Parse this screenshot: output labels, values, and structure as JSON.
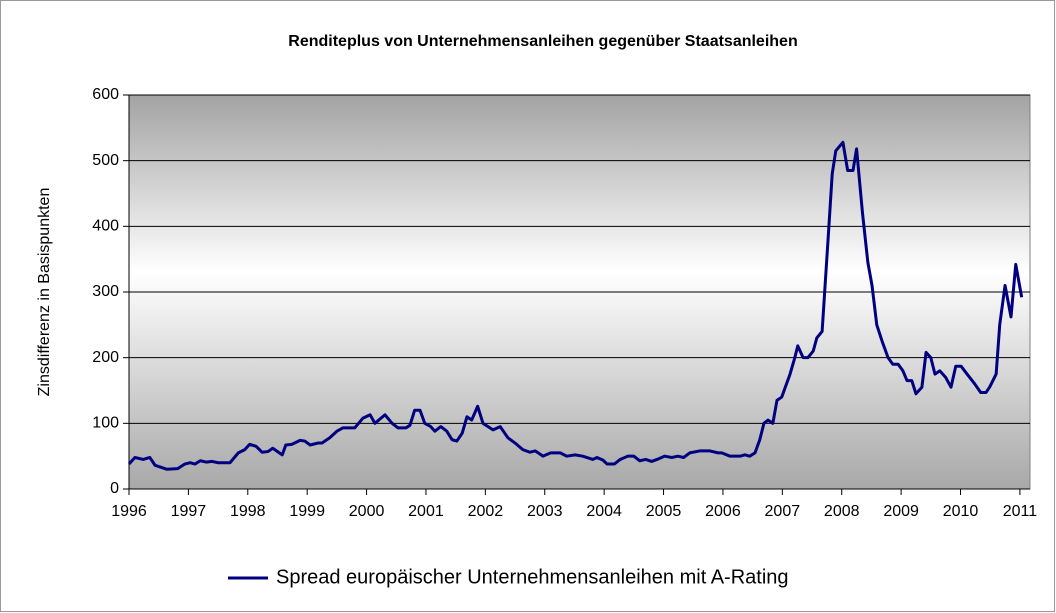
{
  "chart_data": {
    "type": "line",
    "title": "Renditeplus von Unternehmensanleihen gegenüber Staatsanleihen",
    "ylabel": "Zinsdifferenz in Basispunkten",
    "x": [
      1996.0,
      1996.1,
      1996.24,
      1996.35,
      1996.44,
      1996.64,
      1996.82,
      1996.94,
      1997.03,
      1997.11,
      1997.2,
      1997.3,
      1997.4,
      1997.5,
      1997.62,
      1997.7,
      1997.84,
      1997.95,
      1998.03,
      1998.14,
      1998.24,
      1998.34,
      1998.42,
      1998.58,
      1998.64,
      1998.74,
      1998.88,
      1998.96,
      1999.05,
      1999.18,
      1999.25,
      1999.38,
      1999.5,
      1999.6,
      1999.8,
      1999.94,
      2000.06,
      2000.14,
      2000.31,
      2000.43,
      2000.53,
      2000.66,
      2000.73,
      2000.81,
      2000.9,
      2000.98,
      2001.08,
      2001.15,
      2001.25,
      2001.35,
      2001.44,
      2001.52,
      2001.61,
      2001.69,
      2001.77,
      2001.87,
      2001.96,
      2002.13,
      2002.25,
      2002.38,
      2002.5,
      2002.63,
      2002.75,
      2002.84,
      2002.97,
      2003.1,
      2003.26,
      2003.37,
      2003.51,
      2003.64,
      2003.81,
      2003.88,
      2003.98,
      2004.05,
      2004.17,
      2004.27,
      2004.4,
      2004.5,
      2004.6,
      2004.7,
      2004.8,
      2004.89,
      2005.02,
      2005.14,
      2005.24,
      2005.34,
      2005.44,
      2005.61,
      2005.78,
      2005.92,
      2005.98,
      2006.12,
      2006.29,
      2006.37,
      2006.45,
      2006.54,
      2006.62,
      2006.69,
      2006.76,
      2006.84,
      2006.91,
      2006.99,
      2007.13,
      2007.21,
      2007.26,
      2007.35,
      2007.43,
      2007.52,
      2007.58,
      2007.67,
      2007.77,
      2007.84,
      2007.9,
      2008.02,
      2008.1,
      2008.19,
      2008.25,
      2008.35,
      2008.44,
      2008.51,
      2008.59,
      2008.68,
      2008.78,
      2008.86,
      2008.95,
      2009.03,
      2009.1,
      2009.18,
      2009.25,
      2009.35,
      2009.42,
      2009.5,
      2009.57,
      2009.65,
      2009.75,
      2009.84,
      2009.92,
      2010.01,
      2010.11,
      2010.24,
      2010.34,
      2010.43,
      2010.49,
      2010.6,
      2010.66,
      2010.75,
      2010.85,
      2010.93,
      2011.03
    ],
    "series": [
      {
        "name": "Spread europäischer Unternehmensanleihen mit A-Rating",
        "color": "#000080",
        "values": [
          38,
          48,
          45,
          48,
          36,
          30,
          31,
          38,
          40,
          38,
          43,
          41,
          42,
          40,
          40,
          40,
          55,
          60,
          68,
          65,
          56,
          57,
          62,
          52,
          67,
          68,
          74,
          73,
          67,
          70,
          70,
          78,
          88,
          93,
          93,
          108,
          113,
          100,
          113,
          100,
          93,
          93,
          97,
          120,
          120,
          100,
          95,
          88,
          95,
          88,
          75,
          73,
          85,
          110,
          105,
          126,
          100,
          90,
          95,
          78,
          70,
          60,
          56,
          58,
          50,
          55,
          55,
          50,
          52,
          50,
          45,
          48,
          44,
          38,
          38,
          45,
          50,
          50,
          43,
          45,
          42,
          45,
          50,
          48,
          50,
          48,
          55,
          58,
          58,
          55,
          55,
          50,
          50,
          52,
          50,
          55,
          75,
          100,
          105,
          100,
          135,
          140,
          175,
          200,
          218,
          200,
          200,
          210,
          230,
          240,
          380,
          480,
          515,
          528,
          485,
          485,
          518,
          420,
          345,
          310,
          250,
          225,
          200,
          190,
          190,
          180,
          165,
          165,
          145,
          155,
          208,
          200,
          175,
          180,
          170,
          155,
          187,
          187,
          175,
          160,
          147,
          147,
          155,
          175,
          250,
          310,
          262,
          342,
          292
        ]
      }
    ],
    "xlim": [
      1996,
      2011.17
    ],
    "xticks": [
      1996,
      1997,
      1998,
      1999,
      2000,
      2001,
      2002,
      2003,
      2004,
      2005,
      2006,
      2007,
      2008,
      2009,
      2010,
      2011
    ],
    "ylim": [
      0,
      600
    ],
    "yticks": [
      0,
      100,
      200,
      300,
      400,
      500,
      600
    ],
    "grid": true,
    "legend": "bottom"
  }
}
